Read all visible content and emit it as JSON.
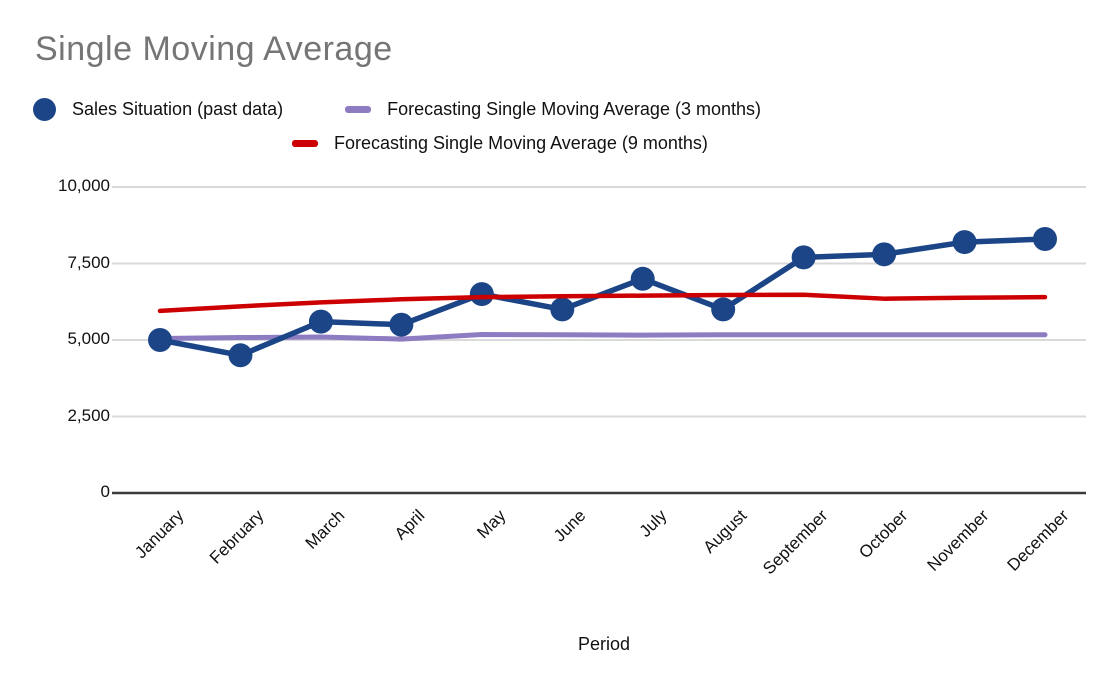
{
  "title": "Single Moving Average",
  "x_axis_title": "Period",
  "colors": {
    "title_text": "#757575",
    "axis_text": "#111111",
    "gridline": "#d9d9d9",
    "zero_axis": "#3b3b3b",
    "sales_blue": "#1c4587",
    "ma3_purple": "#8e7cc3",
    "ma9_red": "#cc0000",
    "background": "#ffffff"
  },
  "chart_data": {
    "type": "line",
    "title": "Single Moving Average",
    "xlabel": "Period",
    "ylabel": "",
    "ylim": [
      0,
      10000
    ],
    "grid": true,
    "legend_position": "top",
    "yticks": [
      0,
      2500,
      5000,
      7500,
      10000
    ],
    "ytick_labels": [
      "0",
      "2,500",
      "5,000",
      "7,500",
      "10,000"
    ],
    "categories": [
      "January",
      "February",
      "March",
      "April",
      "May",
      "June",
      "July",
      "August",
      "September",
      "October",
      "November",
      "December"
    ],
    "series": [
      {
        "name": "Sales Situation (past data)",
        "color": "#1c4587",
        "marker": "circle",
        "values": [
          5000,
          4500,
          5600,
          5500,
          6500,
          6000,
          7000,
          6000,
          7700,
          7800,
          8200,
          8300
        ]
      },
      {
        "name": "Forecasting Single Moving Average (3 months)",
        "color": "#8e7cc3",
        "marker": "dash",
        "values": [
          5050,
          5080,
          5100,
          5030,
          5180,
          5170,
          5160,
          5170,
          5170,
          5170,
          5170,
          5170
        ]
      },
      {
        "name": "Forecasting Single Moving Average (9 months)",
        "color": "#cc0000",
        "marker": "dash",
        "values": [
          5950,
          6100,
          6230,
          6330,
          6400,
          6430,
          6450,
          6470,
          6480,
          6350,
          6380,
          6400
        ]
      }
    ]
  }
}
